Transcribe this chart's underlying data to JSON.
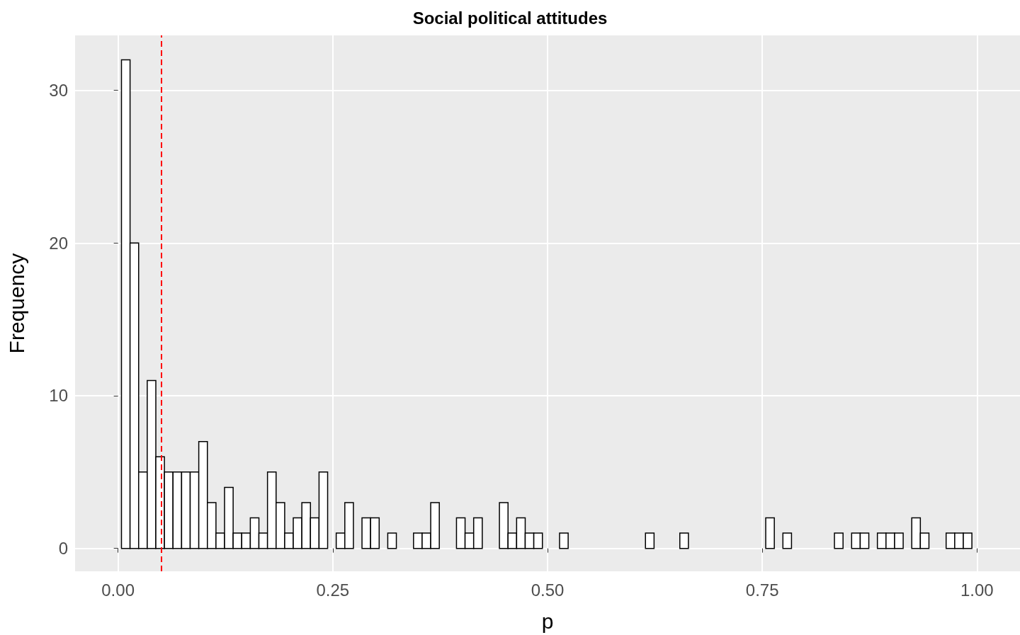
{
  "chart_data": {
    "type": "histogram",
    "title": "Social political attitudes",
    "xlabel": "p",
    "ylabel": "Frequency",
    "bins": [
      0.004,
      0.014,
      0.024,
      0.034,
      0.044,
      0.054,
      0.064,
      0.074,
      0.084,
      0.094,
      0.104,
      0.114,
      0.124,
      0.134,
      0.144,
      0.154,
      0.164,
      0.174,
      0.184,
      0.194,
      0.204,
      0.214,
      0.224,
      0.234,
      0.244,
      0.254,
      0.264,
      0.274,
      0.284,
      0.294,
      0.304,
      0.314,
      0.324,
      0.334,
      0.344,
      0.354,
      0.364,
      0.374,
      0.384,
      0.394,
      0.404,
      0.414,
      0.424,
      0.434,
      0.444,
      0.454,
      0.464,
      0.474,
      0.484,
      0.494,
      0.504,
      0.514,
      0.524,
      0.534,
      0.544,
      0.554,
      0.564,
      0.574,
      0.584,
      0.594,
      0.604,
      0.614,
      0.624,
      0.634,
      0.644,
      0.654,
      0.664,
      0.674,
      0.684,
      0.694,
      0.704,
      0.714,
      0.724,
      0.734,
      0.744,
      0.754,
      0.764,
      0.774,
      0.784,
      0.794,
      0.804,
      0.814,
      0.824,
      0.834,
      0.844,
      0.854,
      0.864,
      0.874,
      0.884,
      0.894,
      0.904,
      0.914,
      0.924,
      0.934,
      0.944,
      0.954,
      0.964,
      0.974,
      0.984,
      0.994
    ],
    "values": [
      32,
      20,
      5,
      11,
      6,
      5,
      5,
      5,
      5,
      7,
      3,
      1,
      4,
      1,
      1,
      2,
      1,
      5,
      3,
      1,
      2,
      3,
      2,
      5,
      0,
      1,
      3,
      0,
      2,
      2,
      0,
      1,
      0,
      0,
      1,
      1,
      3,
      0,
      0,
      2,
      1,
      2,
      0,
      0,
      3,
      1,
      2,
      1,
      1,
      0,
      0,
      1,
      0,
      0,
      0,
      0,
      0,
      0,
      0,
      0,
      0,
      1,
      0,
      0,
      0,
      1,
      0,
      0,
      0,
      0,
      0,
      0,
      0,
      0,
      0,
      2,
      0,
      1,
      0,
      0,
      0,
      0,
      0,
      1,
      0,
      1,
      1,
      0,
      1,
      1,
      1,
      0,
      2,
      1,
      0,
      0,
      1,
      1,
      1
    ],
    "color": "#ffffff",
    "xlim": [
      -0.05,
      1.05
    ],
    "xticks": [
      {
        "value": 0,
        "label": "0.00"
      },
      {
        "value": 0.25,
        "label": "0.25"
      },
      {
        "value": 0.5,
        "label": "0.50"
      },
      {
        "value": 0.75,
        "label": "0.75"
      },
      {
        "value": 1,
        "label": "1.00"
      }
    ],
    "ylim": [
      -1.5,
      33.6
    ],
    "yticks": [
      0,
      10,
      20,
      30
    ],
    "grid": true,
    "legend": false,
    "ref_lines": [
      {
        "axis": "x",
        "value": 0.05,
        "color": "#ff0000",
        "line_style": "dashed"
      }
    ]
  }
}
